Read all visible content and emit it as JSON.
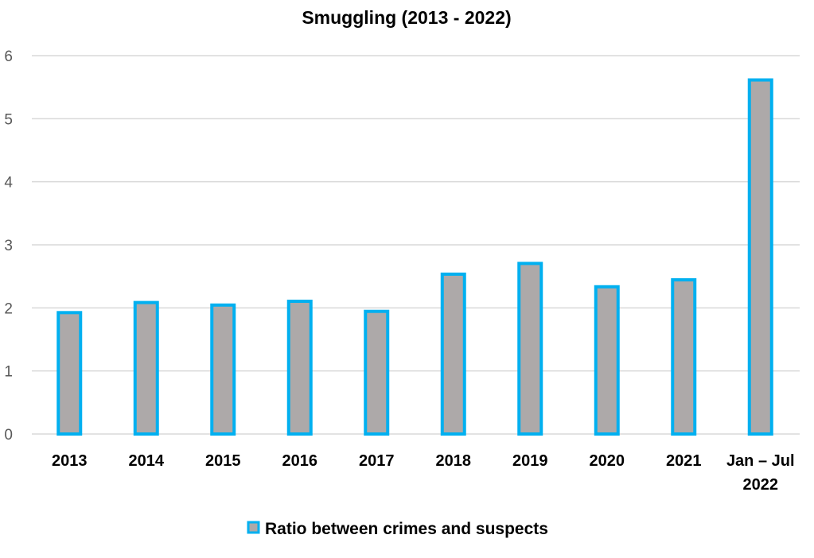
{
  "chart_data": {
    "type": "bar",
    "title": "Smuggling (2013 - 2022)",
    "xlabel": "",
    "ylabel": "",
    "ylim": [
      0,
      6
    ],
    "yticks": [
      0,
      1,
      2,
      3,
      4,
      5,
      6
    ],
    "grid": true,
    "legend_position": "bottom",
    "categories": [
      "2013",
      "2014",
      "2015",
      "2016",
      "2017",
      "2018",
      "2019",
      "2020",
      "2021",
      "Jan – Jul\n2022"
    ],
    "series": [
      {
        "name": "Ratio between crimes and suspects",
        "values": [
          1.95,
          2.11,
          2.07,
          2.13,
          1.97,
          2.56,
          2.73,
          2.36,
          2.47,
          5.64
        ],
        "fill": "#ADA9A9",
        "stroke": "#00B0F0"
      }
    ]
  }
}
